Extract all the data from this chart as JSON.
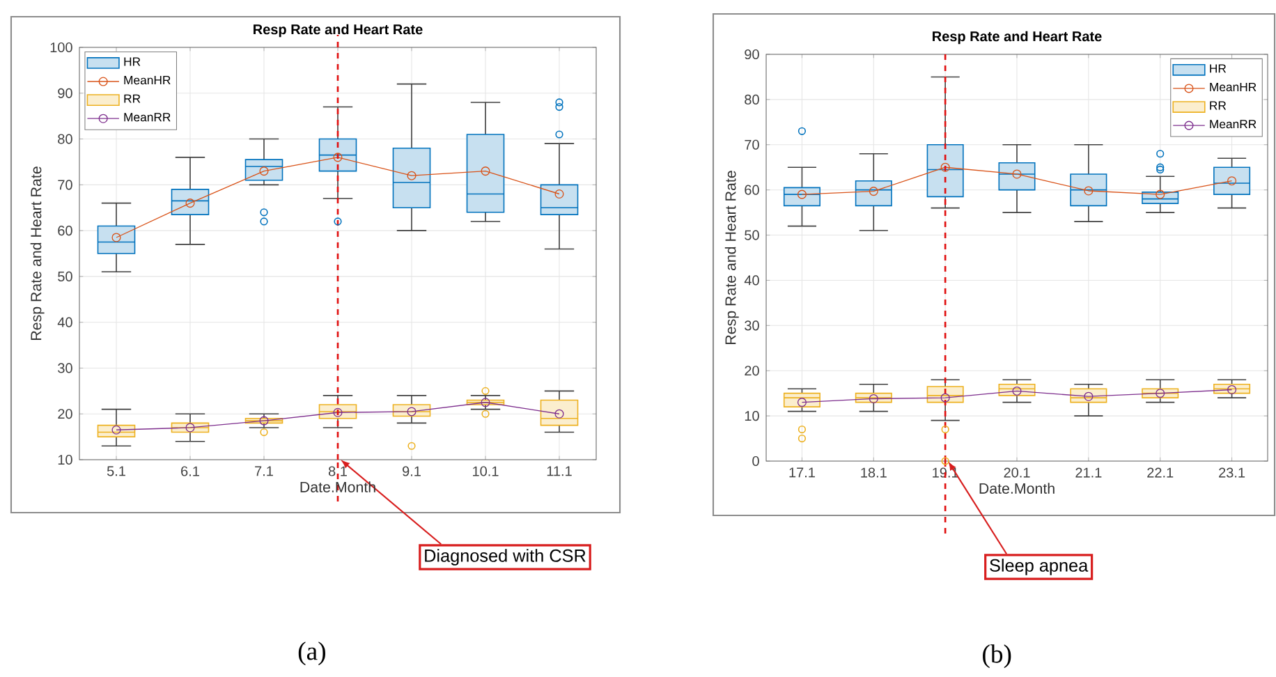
{
  "chart_data": [
    {
      "type": "box",
      "title": "Resp Rate and Heart Rate",
      "xlabel": "Date.Month",
      "ylabel": "Resp Rate and Heart Rate",
      "categories": [
        "5.1",
        "6.1",
        "7.1",
        "8.1",
        "9.1",
        "10.1",
        "11.1"
      ],
      "ylim": [
        10,
        100
      ],
      "yticks": [
        10,
        20,
        30,
        40,
        50,
        60,
        70,
        80,
        90,
        100
      ],
      "grid": true,
      "legend": "top left",
      "series": [
        {
          "name": "HR",
          "type": "box",
          "color": "#0072bd",
          "boxes": [
            {
              "low": 51,
              "q1": 55,
              "median": 57.5,
              "q3": 61,
              "high": 66
            },
            {
              "low": 57,
              "q1": 63.5,
              "median": 66.5,
              "q3": 69,
              "high": 76
            },
            {
              "low": 70,
              "q1": 71,
              "median": 74,
              "q3": 75.5,
              "high": 80,
              "outliers": [
                62,
                64
              ]
            },
            {
              "low": 67,
              "q1": 73,
              "median": 76.5,
              "q3": 80,
              "high": 87,
              "outliers": [
                62
              ]
            },
            {
              "low": 60,
              "q1": 65,
              "median": 70.5,
              "q3": 78,
              "high": 92
            },
            {
              "low": 62,
              "q1": 64,
              "median": 68,
              "q3": 81,
              "high": 88
            },
            {
              "low": 56,
              "q1": 63.5,
              "median": 65,
              "q3": 70,
              "high": 79,
              "outliers": [
                81,
                87,
                88
              ]
            }
          ]
        },
        {
          "name": "MeanHR",
          "type": "line",
          "color": "#d95319",
          "marker": "circle",
          "values": [
            58.5,
            66,
            73,
            76,
            72,
            73,
            68
          ]
        },
        {
          "name": "RR",
          "type": "box",
          "color": "#edb120",
          "boxes": [
            {
              "low": 13,
              "q1": 15,
              "median": 16,
              "q3": 17.5,
              "high": 21
            },
            {
              "low": 14,
              "q1": 16,
              "median": 17,
              "q3": 18,
              "high": 20
            },
            {
              "low": 17,
              "q1": 18,
              "median": 18.5,
              "q3": 19,
              "high": 20,
              "outliers": [
                16
              ]
            },
            {
              "low": 17,
              "q1": 19,
              "median": 20.5,
              "q3": 22,
              "high": 24
            },
            {
              "low": 18,
              "q1": 19.5,
              "median": 20.5,
              "q3": 22,
              "high": 24,
              "outliers": [
                13
              ]
            },
            {
              "low": 21,
              "q1": 22,
              "median": 22.5,
              "q3": 23,
              "high": 24,
              "outliers": [
                20,
                25
              ]
            },
            {
              "low": 16,
              "q1": 17.5,
              "median": 19,
              "q3": 23,
              "high": 25
            }
          ]
        },
        {
          "name": "MeanRR",
          "type": "line",
          "color": "#7e2f8e",
          "marker": "circle",
          "values": [
            16.5,
            17,
            18.5,
            20.3,
            20.5,
            22.5,
            20
          ]
        }
      ],
      "ref_lines": [
        {
          "axis": "x",
          "value": "8.1",
          "label": "Diagnosed with CSR",
          "color": "#e01010",
          "line_style": "dashed"
        }
      ],
      "annotations": [
        "(a)"
      ]
    },
    {
      "type": "box",
      "title": "Resp Rate and Heart Rate",
      "xlabel": "Date.Month",
      "ylabel": "Resp Rate and Heart Rate",
      "categories": [
        "17.1",
        "18.1",
        "19.1",
        "20.1",
        "21.1",
        "22.1",
        "23.1"
      ],
      "ylim": [
        0,
        90
      ],
      "yticks": [
        0,
        10,
        20,
        30,
        40,
        50,
        60,
        70,
        80,
        90
      ],
      "grid": true,
      "legend": "top right",
      "series": [
        {
          "name": "HR",
          "type": "box",
          "color": "#0072bd",
          "boxes": [
            {
              "low": 52,
              "q1": 56.5,
              "median": 59,
              "q3": 60.5,
              "high": 65,
              "outliers": [
                73
              ]
            },
            {
              "low": 51,
              "q1": 56.5,
              "median": 60,
              "q3": 62,
              "high": 68
            },
            {
              "low": 56,
              "q1": 58.5,
              "median": 64.5,
              "q3": 70,
              "high": 85
            },
            {
              "low": 55,
              "q1": 60,
              "median": 63.5,
              "q3": 66,
              "high": 70
            },
            {
              "low": 53,
              "q1": 56.5,
              "median": 60,
              "q3": 63.5,
              "high": 70
            },
            {
              "low": 55,
              "q1": 57,
              "median": 58,
              "q3": 59.5,
              "high": 63,
              "outliers": [
                64.5,
                65,
                68
              ]
            },
            {
              "low": 56,
              "q1": 59,
              "median": 61.5,
              "q3": 65,
              "high": 67
            }
          ]
        },
        {
          "name": "MeanHR",
          "type": "line",
          "color": "#d95319",
          "marker": "circle",
          "values": [
            59,
            59.7,
            65,
            63.5,
            59.8,
            59,
            62
          ]
        },
        {
          "name": "RR",
          "type": "box",
          "color": "#edb120",
          "boxes": [
            {
              "low": 11,
              "q1": 12,
              "median": 14,
              "q3": 15,
              "high": 16,
              "outliers": [
                5,
                7
              ]
            },
            {
              "low": 11,
              "q1": 13,
              "median": 14,
              "q3": 15,
              "high": 17
            },
            {
              "low": 9,
              "q1": 13,
              "median": 14.5,
              "q3": 16.5,
              "high": 18,
              "outliers": [
                0,
                7
              ]
            },
            {
              "low": 13,
              "q1": 14.5,
              "median": 16,
              "q3": 17,
              "high": 18
            },
            {
              "low": 10,
              "q1": 13,
              "median": 14,
              "q3": 16,
              "high": 17
            },
            {
              "low": 13,
              "q1": 14,
              "median": 15,
              "q3": 16,
              "high": 18
            },
            {
              "low": 14,
              "q1": 15,
              "median": 16,
              "q3": 17,
              "high": 18
            }
          ]
        },
        {
          "name": "MeanRR",
          "type": "line",
          "color": "#7e2f8e",
          "marker": "circle",
          "values": [
            13,
            13.8,
            14,
            15.5,
            14.3,
            15,
            15.8
          ]
        }
      ],
      "ref_lines": [
        {
          "axis": "x",
          "value": "19.1",
          "label": "Sleep apnea",
          "color": "#e01010",
          "line_style": "dashed"
        }
      ],
      "annotations": [
        "(b)"
      ]
    }
  ]
}
